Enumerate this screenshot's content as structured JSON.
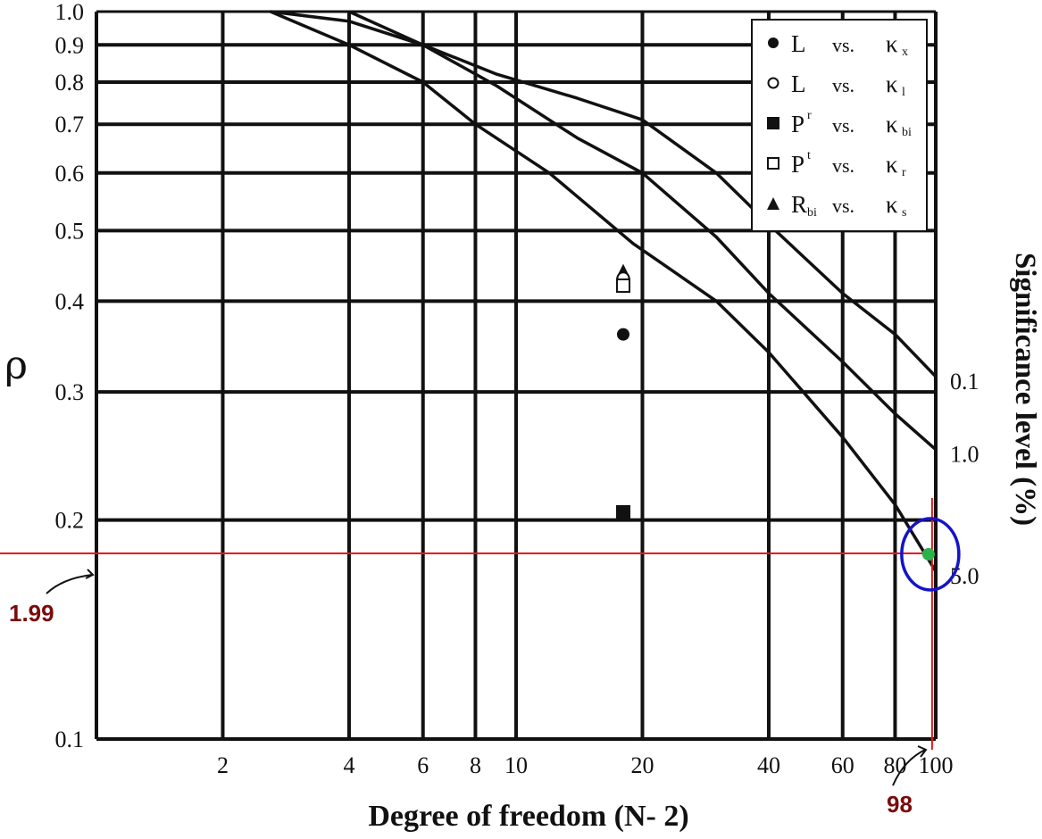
{
  "chart_data": {
    "type": "line",
    "xscale": "log",
    "yscale": "log",
    "xlim": [
      1,
      100
    ],
    "ylim": [
      0.1,
      1.0
    ],
    "xlabel": "Degree of freedom (N- 2)",
    "ylabel": "ρ",
    "right_label": "Significance level (%)",
    "x_ticks": [
      {
        "v": 2,
        "label": "2"
      },
      {
        "v": 4,
        "label": "4"
      },
      {
        "v": 6,
        "label": "6"
      },
      {
        "v": 8,
        "label": "8"
      },
      {
        "v": 10,
        "label": "10"
      },
      {
        "v": 20,
        "label": "20"
      },
      {
        "v": 40,
        "label": "40"
      },
      {
        "v": 60,
        "label": "60"
      },
      {
        "v": 80,
        "label": "80"
      },
      {
        "v": 100,
        "label": "100"
      }
    ],
    "y_ticks": [
      {
        "v": 0.1,
        "label": "0.1"
      },
      {
        "v": 0.2,
        "label": "0.2"
      },
      {
        "v": 0.3,
        "label": "0.3"
      },
      {
        "v": 0.4,
        "label": "0.4"
      },
      {
        "v": 0.5,
        "label": "0.5"
      },
      {
        "v": 0.6,
        "label": "0.6"
      },
      {
        "v": 0.7,
        "label": "0.7"
      },
      {
        "v": 0.8,
        "label": "0.8"
      },
      {
        "v": 0.9,
        "label": "0.9"
      },
      {
        "v": 1.0,
        "label": "1.0"
      }
    ],
    "grid": true,
    "series": [
      {
        "name": "0.1",
        "x": [
          2.6,
          4.0,
          6.0,
          9.0,
          14.0,
          20.0,
          30.0,
          40.0,
          60.0,
          80.0,
          100.0
        ],
        "y": [
          1.0,
          0.97,
          0.9,
          0.82,
          0.76,
          0.71,
          0.6,
          0.51,
          0.41,
          0.36,
          0.315
        ]
      },
      {
        "name": "1.0",
        "x": [
          4.0,
          6.0,
          9.0,
          14.0,
          20.0,
          30.0,
          40.0,
          60.0,
          80.0,
          100.0
        ],
        "y": [
          1.0,
          0.9,
          0.79,
          0.67,
          0.6,
          0.49,
          0.41,
          0.33,
          0.28,
          0.25
        ]
      },
      {
        "name": "5.0",
        "x": [
          2.6,
          4.0,
          6.0,
          8.0,
          12.0,
          19.0,
          30.0,
          40.0,
          60.0,
          80.0,
          100.0
        ],
        "y": [
          1.0,
          0.9,
          0.8,
          0.7,
          0.6,
          0.48,
          0.4,
          0.34,
          0.26,
          0.21,
          0.17
        ]
      }
    ],
    "points": [
      {
        "marker": "filled-triangle",
        "x": 18,
        "y": 0.44
      },
      {
        "marker": "open-circle",
        "x": 18,
        "y": 0.43
      },
      {
        "marker": "open-square",
        "x": 18,
        "y": 0.42
      },
      {
        "marker": "filled-circle",
        "x": 18,
        "y": 0.36
      },
      {
        "marker": "filled-square",
        "x": 18,
        "y": 0.205
      }
    ],
    "legend": {
      "position": "top-right",
      "entries": [
        {
          "marker": "filled-circle",
          "var": "L",
          "vs": "vs.",
          "k": "κ",
          "sub": "x"
        },
        {
          "marker": "open-circle",
          "var": "L",
          "vs": "vs.",
          "k": "κ",
          "sub": "l"
        },
        {
          "marker": "filled-square",
          "var": "P",
          "sup": "r",
          "vs": "vs.",
          "k": "κ",
          "sub": "bi"
        },
        {
          "marker": "open-square",
          "var": "P",
          "sup": "t",
          "vs": "vs.",
          "k": "κ",
          "sub": "r"
        },
        {
          "marker": "filled-triangle",
          "var": "R",
          "varsub": "bi",
          "vs": "vs.",
          "k": "κ",
          "sub": "s"
        }
      ]
    },
    "annotations": {
      "y_readout": {
        "label": "1.99",
        "value": 0.18
      },
      "x_readout": {
        "label": "98",
        "value": 98
      },
      "highlight": {
        "x": 98,
        "y": 0.18,
        "point_color": "#2bb34a",
        "circle_color": "#1414c8",
        "line_color": "#e8141c"
      }
    }
  }
}
